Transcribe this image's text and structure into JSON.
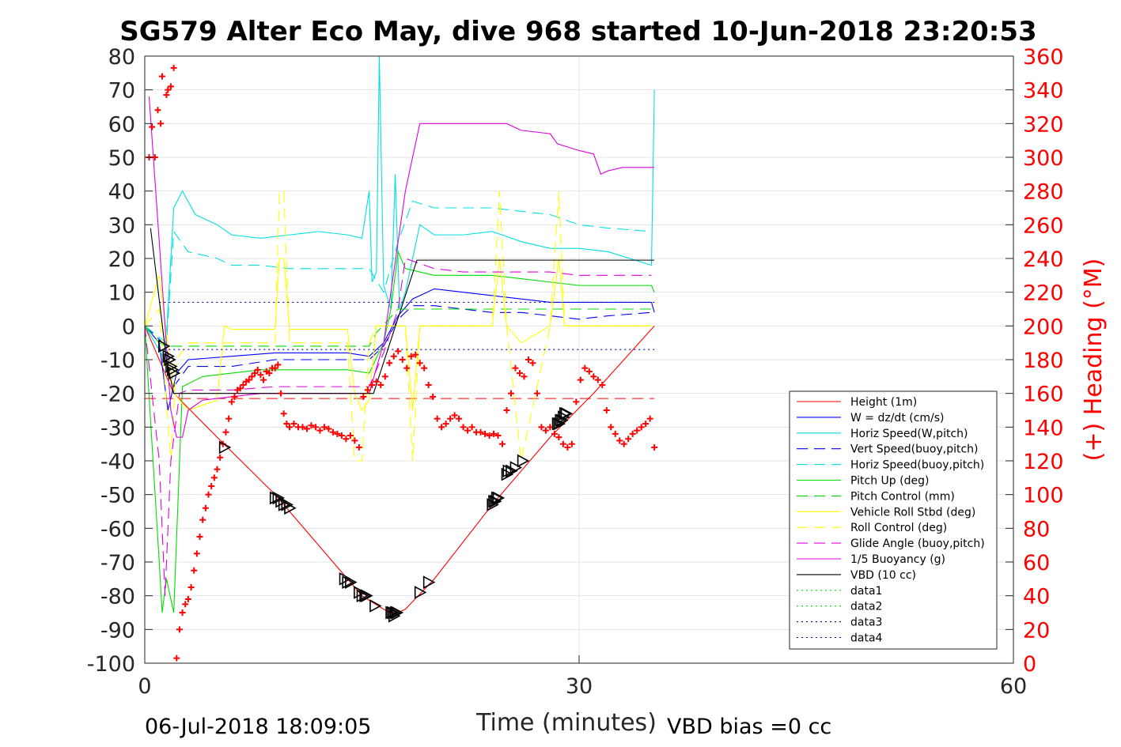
{
  "footer": {
    "start_time": "06-Jul-2018 18:09:05",
    "vbd_bias": "VBD bias =0 cc"
  },
  "chart_data": {
    "type": "line",
    "title": "SG579 Alter Eco May, dive 968 started 10-Jun-2018 23:20:53",
    "xlabel": "Time (minutes)",
    "ylabel": "",
    "ylabel_right": "(+) Heading (°M)",
    "xlim": [
      0,
      60
    ],
    "ylim": [
      -100,
      80
    ],
    "ylim_right": [
      0,
      360
    ],
    "xticks": [
      0,
      30,
      60
    ],
    "yticks": [
      80,
      70,
      60,
      50,
      40,
      30,
      20,
      10,
      0,
      -10,
      -20,
      -30,
      -40,
      -50,
      -60,
      -70,
      -80,
      -90,
      -100
    ],
    "yticks_right": [
      360,
      340,
      320,
      300,
      280,
      260,
      240,
      220,
      200,
      180,
      160,
      140,
      120,
      100,
      80,
      60,
      40,
      20,
      0
    ],
    "grid": true,
    "legend_position": "bottom-right",
    "series": [
      {
        "name": "Height (1m)",
        "color": "#ff0000",
        "style": "solid",
        "axis": "left",
        "x": [
          0,
          2,
          5,
          9,
          13,
          15,
          16.5,
          17.2,
          18,
          20,
          24,
          28,
          31,
          35.2
        ],
        "y": [
          0,
          -20,
          -33,
          -50,
          -70,
          -80,
          -84,
          -85.5,
          -84,
          -75,
          -53,
          -33,
          -20,
          0
        ]
      },
      {
        "name": "W = dz/dt (cm/s)",
        "color": "#0000ff",
        "style": "solid",
        "axis": "left",
        "x": [
          0,
          1,
          1.6,
          2.2,
          3,
          6,
          9,
          12,
          14,
          15.5,
          16.5,
          17.5,
          18.5,
          20,
          22,
          24,
          26,
          28,
          30,
          32,
          35,
          35.2
        ],
        "y": [
          0,
          -5,
          -25,
          -14,
          -10,
          -9,
          -8,
          -8,
          -8,
          -9,
          -5,
          3,
          8,
          11,
          10,
          9,
          8,
          7,
          7,
          7,
          7,
          4
        ]
      },
      {
        "name": "Horiz Speed(W,pitch)",
        "color": "#00e0e0",
        "style": "solid",
        "axis": "left",
        "x": [
          0,
          1.4,
          2,
          2.6,
          3.5,
          5,
          6,
          8,
          10,
          12,
          14,
          15,
          15.5,
          15.7,
          16,
          16.2,
          16.5,
          17,
          17.3,
          17.6,
          18,
          19,
          20,
          22,
          24,
          26,
          28,
          30,
          32,
          35,
          35.2
        ],
        "y": [
          0,
          -10,
          35,
          40,
          33,
          30,
          27,
          26,
          27,
          28,
          27,
          26,
          40,
          13,
          16,
          80,
          12,
          5,
          45,
          5,
          10,
          30,
          27,
          27,
          28,
          25,
          23,
          23,
          22,
          18,
          70
        ]
      },
      {
        "name": "Vert Speed(buoy,pitch)",
        "color": "#0000ff",
        "style": "dash",
        "axis": "left",
        "x": [
          0,
          1.5,
          2,
          3,
          6,
          9,
          12,
          14,
          15.5,
          16.5,
          17.5,
          18.5,
          20,
          22,
          24,
          26,
          28,
          30,
          32,
          35
        ],
        "y": [
          0,
          -6,
          -18,
          -12,
          -12,
          -10,
          -10,
          -10,
          -10,
          -6,
          2,
          6,
          6,
          5,
          4,
          4,
          3,
          2,
          3,
          4
        ]
      },
      {
        "name": "Horiz Speed(buoy,pitch)",
        "color": "#00e0e0",
        "style": "dash",
        "axis": "left",
        "x": [
          0,
          1.5,
          2,
          3,
          5,
          6,
          8,
          10,
          12,
          14,
          15.5,
          16.5,
          17.5,
          18.5,
          20,
          22,
          24,
          26,
          28,
          30,
          32,
          35
        ],
        "y": [
          0,
          -5,
          28,
          22,
          20,
          18,
          18,
          17,
          17,
          17,
          17,
          10,
          25,
          37,
          35,
          35,
          35,
          34,
          33,
          30,
          29,
          28
        ]
      },
      {
        "name": "Pitch Up (deg)",
        "color": "#00dd00",
        "style": "solid",
        "axis": "left",
        "x": [
          0,
          1,
          1.2,
          1.5,
          2,
          2.6,
          4,
          6,
          8,
          10,
          12,
          14,
          15.5,
          16.5,
          17,
          17.5,
          18,
          19,
          20,
          22,
          24,
          26,
          28,
          30,
          32,
          35,
          35.2
        ],
        "y": [
          0,
          -70,
          -85,
          -75,
          -85,
          -18,
          -15,
          -14,
          -13,
          -13,
          -13,
          -13,
          -14,
          -5,
          5,
          22,
          17,
          16,
          15,
          15,
          15,
          14,
          13,
          12,
          12,
          12,
          10
        ]
      },
      {
        "name": "Pitch Control (mm)",
        "color": "#00dd00",
        "style": "dash",
        "axis": "left",
        "x": [
          0,
          1,
          1.5,
          15.5,
          16,
          17.5,
          35
        ],
        "y": [
          0,
          -5,
          -6,
          -6,
          -2,
          5,
          5
        ]
      },
      {
        "name": "Vehicle Roll Stbd (deg)",
        "color": "#ffff00",
        "style": "solid",
        "axis": "left",
        "x": [
          0,
          1,
          2,
          3,
          5,
          5.5,
          6,
          9,
          9.3,
          9.6,
          10,
          14,
          14.5,
          15,
          15.5,
          16,
          18,
          18.5,
          19,
          24,
          24.5,
          25,
          26,
          28,
          28.6,
          29,
          30,
          35
        ],
        "y": [
          0,
          15,
          -20,
          -25,
          -22,
          0,
          -1,
          -1,
          20,
          20,
          -1,
          -1,
          -20,
          -25,
          -22,
          0,
          0,
          -25,
          0,
          0,
          20,
          0,
          -5,
          0,
          20,
          0,
          0,
          0
        ]
      },
      {
        "name": "Roll Control (deg)",
        "color": "#ffff00",
        "style": "dash",
        "axis": "left",
        "x": [
          0,
          1,
          1.8,
          2.2,
          3,
          9,
          9.3,
          9.6,
          10,
          14,
          14.5,
          15,
          15.5,
          16,
          18,
          18.5,
          19,
          24,
          24.5,
          25,
          26,
          28,
          28.6,
          29,
          30,
          35
        ],
        "y": [
          0,
          5,
          -40,
          -10,
          -5,
          -5,
          40,
          40,
          -5,
          -5,
          -40,
          -40,
          -5,
          0,
          0,
          -40,
          0,
          0,
          40,
          0,
          -40,
          0,
          40,
          0,
          0,
          0
        ]
      },
      {
        "name": "Glide Angle (buoy,pitch)",
        "color": "#e000e0",
        "style": "dash",
        "axis": "left",
        "x": [
          0,
          1,
          1.4,
          1.8,
          2.4,
          3,
          6,
          9,
          12,
          14,
          15.5,
          16.5,
          17.5,
          18,
          20,
          22,
          24,
          26,
          28,
          30,
          32,
          35
        ],
        "y": [
          0,
          -40,
          -80,
          -40,
          -20,
          -19,
          -19,
          -18,
          -18,
          -18,
          -18,
          -8,
          5,
          20,
          17,
          16,
          16,
          16,
          16,
          15,
          15,
          15
        ]
      },
      {
        "name": "1/5 Buoyancy (g)",
        "color": "#e000e0",
        "style": "solid",
        "axis": "left",
        "x": [
          0.3,
          1,
          1.8,
          2.2,
          2.6,
          3,
          4,
          6,
          8,
          10,
          12,
          14,
          15.5,
          16.5,
          18,
          19,
          20,
          22,
          24,
          25,
          26,
          28,
          28.5,
          30,
          31,
          31.5,
          32,
          33,
          35,
          35.2
        ],
        "y": [
          68,
          25,
          -25,
          -33,
          -33,
          -25,
          -22,
          -21,
          -20,
          -20,
          -20,
          -20,
          -20,
          -5,
          40,
          60,
          60,
          60,
          60,
          60,
          58,
          57,
          54,
          52,
          51,
          45,
          46,
          47,
          47,
          47
        ]
      },
      {
        "name": "VBD (10 cc)",
        "color": "#000000",
        "style": "solid",
        "axis": "left",
        "x": [
          0.4,
          1.5,
          2,
          15.8,
          18.8,
          35.2
        ],
        "y": [
          29,
          -10,
          -20,
          -20,
          19.5,
          19.5
        ]
      },
      {
        "name": "data1",
        "color": "#00dd00",
        "style": "dot",
        "axis": "left",
        "x": [],
        "y": []
      },
      {
        "name": "data2",
        "color": "#00dd00",
        "style": "dot",
        "axis": "left",
        "x": [],
        "y": []
      },
      {
        "name": "data3",
        "color": "#0000aa",
        "style": "dot",
        "axis": "left",
        "x": [
          1,
          35.2
        ],
        "y": [
          7,
          7
        ]
      },
      {
        "name": "data4",
        "color": "#0000aa",
        "style": "dot",
        "axis": "left",
        "x": [
          1,
          35.2
        ],
        "y": [
          -7,
          -7
        ]
      }
    ],
    "reference_line": {
      "color": "#ff0000",
      "style": "dash",
      "axis": "left",
      "x": [
        0,
        35.2
      ],
      "y": [
        -21.5,
        -21.5
      ]
    },
    "heading_markers": {
      "color": "#ff0000",
      "marker": "plus",
      "axis": "right",
      "x": [
        0.3,
        0.5,
        0.7,
        0.9,
        1.1,
        1.2,
        1.5,
        1.6,
        1.8,
        2.0,
        2.2,
        2.4,
        2.6,
        2.8,
        3.0,
        3.2,
        3.4,
        3.6,
        3.8,
        4.0,
        4.2,
        4.4,
        4.6,
        4.8,
        5.0,
        5.2,
        5.4,
        5.6,
        5.8,
        6.0,
        6.2,
        6.4,
        6.6,
        6.8,
        7.0,
        7.2,
        7.4,
        7.6,
        7.8,
        8.0,
        8.2,
        8.4,
        8.6,
        8.8,
        9.0,
        9.2,
        9.4,
        9.6,
        9.8,
        10.0,
        10.3,
        10.6,
        10.9,
        11.2,
        11.5,
        11.8,
        12.1,
        12.4,
        12.7,
        13.0,
        13.3,
        13.6,
        13.9,
        14.2,
        14.5,
        14.8,
        15.1,
        15.4,
        15.7,
        16.0,
        16.3,
        16.6,
        16.9,
        17.2,
        17.5,
        17.8,
        18.1,
        18.4,
        18.7,
        19.0,
        19.3,
        19.6,
        19.9,
        20.2,
        20.5,
        20.8,
        21.1,
        21.4,
        21.7,
        22.0,
        22.3,
        22.6,
        22.9,
        23.2,
        23.5,
        23.8,
        24.1,
        24.4,
        24.7,
        25.0,
        25.3,
        25.6,
        25.9,
        26.2,
        26.5,
        26.8,
        27.1,
        27.4,
        27.7,
        28.0,
        28.3,
        28.6,
        28.9,
        29.2,
        29.5,
        29.8,
        30.1,
        30.4,
        30.7,
        31.0,
        31.3,
        31.6,
        31.9,
        32.2,
        32.5,
        32.8,
        33.1,
        33.4,
        33.7,
        34.0,
        34.3,
        34.6,
        34.9,
        35.2
      ],
      "y": [
        300,
        318,
        300,
        328,
        320,
        348,
        337,
        340,
        342,
        353,
        3,
        20,
        30,
        35,
        38,
        45,
        55,
        65,
        75,
        85,
        92,
        100,
        105,
        110,
        115,
        122,
        130,
        137,
        145,
        155,
        158,
        162,
        163,
        165,
        167,
        168,
        170,
        172,
        174,
        171,
        168,
        173,
        172,
        175,
        175,
        177,
        160,
        148,
        142,
        140,
        142,
        140,
        140,
        139,
        141,
        140,
        138,
        140,
        139,
        137,
        136,
        135,
        133,
        135,
        132,
        128,
        158,
        162,
        165,
        167,
        165,
        170,
        178,
        182,
        185,
        180,
        175,
        182,
        183,
        178,
        175,
        165,
        158,
        145,
        140,
        142,
        145,
        147,
        145,
        140,
        138,
        140,
        137,
        137,
        136,
        135,
        136,
        135,
        130,
        150,
        160,
        175,
        172,
        170,
        180,
        178,
        160,
        140,
        138,
        140,
        136,
        134,
        130,
        128,
        130,
        155,
        168,
        175,
        173,
        170,
        168,
        165,
        150,
        140,
        136,
        132,
        130,
        133,
        136,
        138,
        140,
        142,
        145,
        128
      ]
    },
    "gps_markers": {
      "color": "#000000",
      "marker": "triangle-right",
      "axis": "left",
      "x": [
        1.3,
        1.6,
        1.7,
        1.8,
        1.9,
        2.0,
        5.5,
        9.0,
        9.2,
        9.4,
        9.6,
        9.8,
        10.0,
        13.8,
        14.0,
        14.2,
        14.8,
        15.0,
        15.2,
        15.3,
        15.9,
        17.0,
        17.1,
        17.2,
        17.3,
        17.4,
        19.0,
        19.6,
        24.0,
        24.1,
        24.2,
        24.3,
        24.4,
        25.0,
        25.1,
        25.3,
        25.6,
        26.1,
        28.5,
        28.6,
        28.7,
        28.8,
        28.9,
        29.0,
        29.1
      ],
      "y": [
        -6,
        -9,
        -10,
        -12,
        -13,
        -14,
        -36,
        -51,
        -51,
        -52,
        -53,
        -53,
        -54,
        -75,
        -76,
        -76,
        -79,
        -80,
        -80,
        -80,
        -83,
        -85,
        -85,
        -86,
        -85,
        -85,
        -79,
        -76,
        -53,
        -52,
        -52,
        -51,
        -51,
        -44,
        -43,
        -43,
        -42,
        -40,
        -29,
        -29,
        -28,
        -28,
        -27,
        -26,
        -26
      ]
    }
  }
}
